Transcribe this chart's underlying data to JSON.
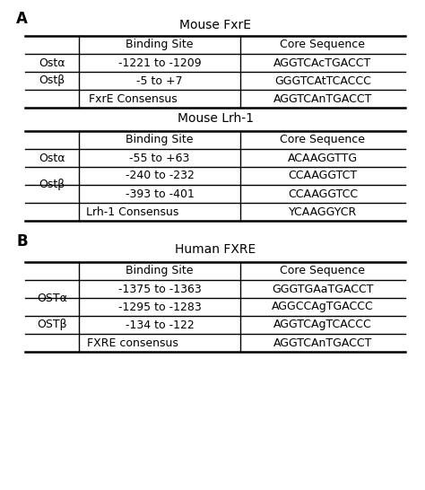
{
  "panel_A_label": "A",
  "panel_B_label": "B",
  "table1_title": "Mouse FxrE",
  "table2_title": "Mouse Lrh-1",
  "table3_title": "Human FXRE",
  "bg_color": "#ffffff",
  "text_color": "#000000",
  "line_color": "#000000",
  "title_fontsize": 10,
  "header_fontsize": 9,
  "cell_fontsize": 9,
  "label_fontsize": 12
}
